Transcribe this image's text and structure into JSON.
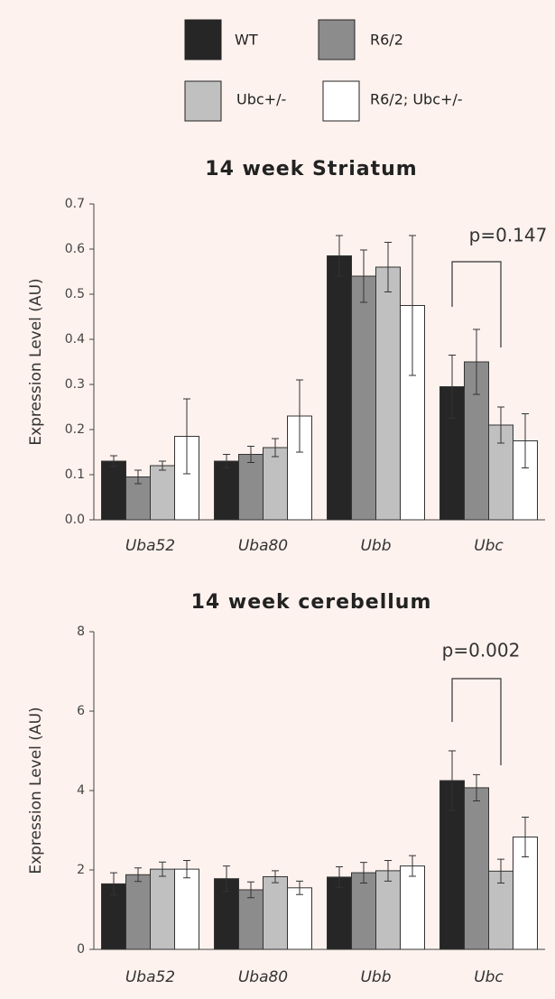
{
  "legend_names": [
    "WT",
    "R6/2",
    "Ubc+/-",
    "R6/2; Ubc+/-"
  ],
  "chart_data": [
    {
      "type": "bar",
      "title": "14 week Striatum",
      "y_label": "Expression Level (AU)",
      "categories": [
        "Uba52",
        "Uba80",
        "Ubb",
        "Ubc"
      ],
      "series": [
        {
          "color": "#262626",
          "values": [
            0.13,
            0.13,
            0.585,
            0.295
          ],
          "errors": [
            0.012,
            0.015,
            0.045,
            0.07
          ]
        },
        {
          "color": "#8c8c8c",
          "values": [
            0.095,
            0.145,
            0.54,
            0.35
          ],
          "errors": [
            0.015,
            0.018,
            0.058,
            0.072
          ]
        },
        {
          "color": "#c0c0c0",
          "values": [
            0.12,
            0.16,
            0.56,
            0.21
          ],
          "errors": [
            0.01,
            0.02,
            0.055,
            0.04
          ]
        },
        {
          "color": "#ffffff",
          "values": [
            0.185,
            0.23,
            0.475,
            0.175
          ],
          "errors": [
            0.083,
            0.08,
            0.155,
            0.06
          ]
        }
      ],
      "ylim": [
        0,
        0.7
      ],
      "yticks": [
        {
          "value": 0,
          "label": "0.0"
        },
        0.1,
        0.2,
        0.3,
        0.4,
        0.5,
        0.6,
        0.7
      ],
      "annotation": "p=0.147"
    },
    {
      "type": "bar",
      "title": "14 week cerebellum",
      "y_label": "Expression Level (AU)",
      "categories": [
        "Uba52",
        "Uba80",
        "Ubb",
        "Ubc"
      ],
      "series": [
        {
          "color": "#262626",
          "values": [
            1.65,
            1.78,
            1.82,
            4.25
          ],
          "errors": [
            0.28,
            0.32,
            0.26,
            0.75
          ]
        },
        {
          "color": "#8c8c8c",
          "values": [
            1.88,
            1.5,
            1.93,
            4.07
          ],
          "errors": [
            0.17,
            0.2,
            0.26,
            0.33
          ]
        },
        {
          "color": "#c0c0c0",
          "values": [
            2.02,
            1.83,
            1.98,
            1.97
          ],
          "errors": [
            0.18,
            0.15,
            0.26,
            0.3
          ]
        },
        {
          "color": "#ffffff",
          "values": [
            2.02,
            1.55,
            2.1,
            2.83
          ],
          "errors": [
            0.22,
            0.17,
            0.26,
            0.5
          ]
        }
      ],
      "ylim": [
        0,
        8
      ],
      "yticks": [
        0,
        2,
        4,
        6,
        8
      ],
      "annotation": "p=0.002"
    }
  ]
}
